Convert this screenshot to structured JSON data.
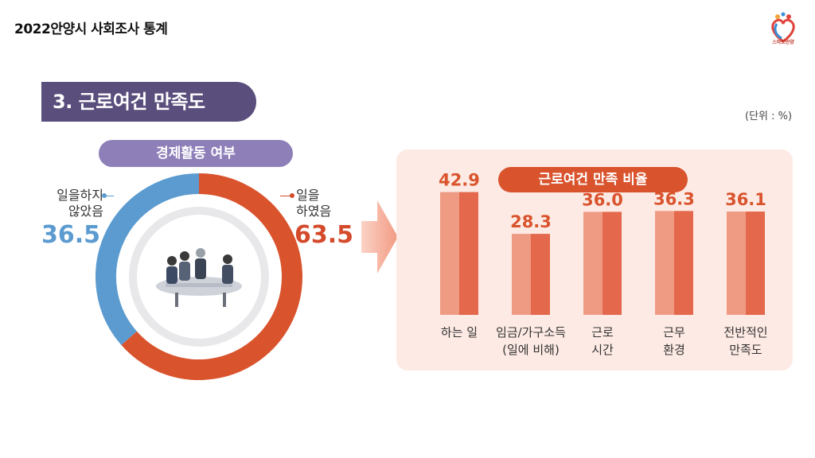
{
  "header": {
    "title": "2022안양시 사회조사 통계",
    "logo_text": "스마트안양"
  },
  "section_title": "3. 근로여건 만족도",
  "unit": "(단위 : %)",
  "colors": {
    "purple": "#5a4e7c",
    "light_purple": "#8e7fb9",
    "orange": "#d9532d",
    "blue": "#5b9bd0",
    "bar_light": "#ef9b84",
    "bar_dark": "#e4684c"
  },
  "chart_data": [
    {
      "type": "pie",
      "title": "경제활동 여부",
      "slices": [
        {
          "name": "일을 하였음",
          "label_lines": [
            "일을",
            "하였음"
          ],
          "value": 63.5,
          "value_text": "63.5"
        },
        {
          "name": "일을하지 않았음",
          "label_lines": [
            "일을하지",
            "않았음"
          ],
          "value": 36.5,
          "value_text": "36.5"
        }
      ]
    },
    {
      "type": "bar",
      "title": "근로여건 만족 비율",
      "categories": [
        {
          "name": "하는 일",
          "lines": [
            "하는 일"
          ]
        },
        {
          "name": "임금/가구소득 (일에 비해)",
          "lines": [
            "임금/가구소득",
            "(일에 비해)"
          ]
        },
        {
          "name": "근로 시간",
          "lines": [
            "근로",
            "시간"
          ]
        },
        {
          "name": "근무 환경",
          "lines": [
            "근무",
            "환경"
          ]
        },
        {
          "name": "전반적인 만족도",
          "lines": [
            "전반적인",
            "만족도"
          ]
        }
      ],
      "values": [
        42.9,
        28.3,
        36.0,
        36.3,
        36.1
      ],
      "value_labels": [
        "42.9",
        "28.3",
        "36.0",
        "36.3",
        "36.1"
      ],
      "ylim": [
        0,
        50
      ]
    }
  ]
}
